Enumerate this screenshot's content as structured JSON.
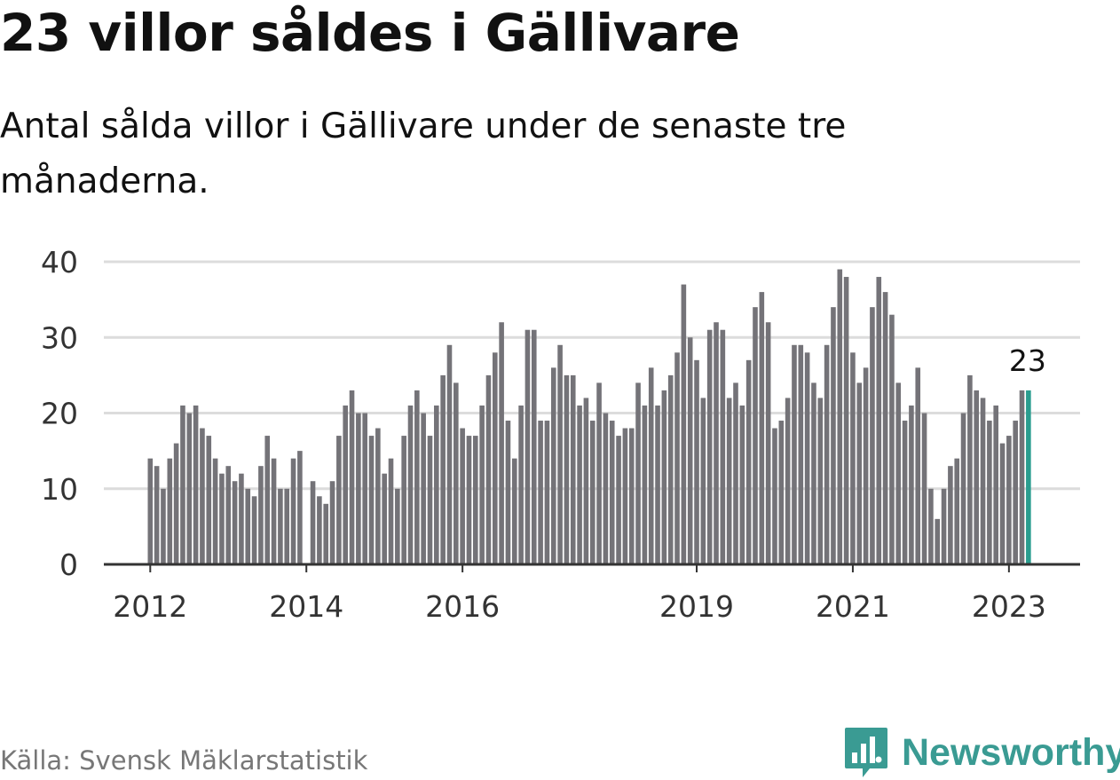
{
  "title": "23 villor såldes i Gällivare",
  "subtitle": "Antal sålda villor i Gällivare under de senaste tre månaderna.",
  "source": "Källa: Svensk Mäklarstatistik",
  "brand": "Newsworthy",
  "colors": {
    "bar": "#747378",
    "highlight": "#2a9d8f",
    "grid": "#dcdcdc",
    "axis": "#333333",
    "brand": "#3a9b93",
    "source_text": "#777777"
  },
  "chart_data": {
    "type": "bar",
    "title": "23 villor såldes i Gällivare",
    "subtitle": "Antal sålda villor i Gällivare under de senaste tre månaderna.",
    "xlabel": "",
    "ylabel": "",
    "ylim": [
      0,
      40
    ],
    "yticks": [
      0,
      10,
      20,
      30,
      40
    ],
    "xtick_labels": [
      "2012",
      "2014",
      "2016",
      "2019",
      "2021",
      "2023"
    ],
    "xtick_bar_index": [
      0,
      24,
      48,
      84,
      108,
      132
    ],
    "grid": true,
    "highlight_label": "23",
    "highlight_index": 135,
    "values": [
      14,
      13,
      10,
      14,
      16,
      21,
      20,
      21,
      18,
      17,
      14,
      12,
      13,
      11,
      12,
      10,
      9,
      13,
      17,
      14,
      10,
      10,
      14,
      15,
      0,
      11,
      9,
      8,
      11,
      17,
      21,
      23,
      20,
      20,
      17,
      18,
      12,
      14,
      10,
      17,
      21,
      23,
      20,
      17,
      21,
      25,
      29,
      24,
      18,
      17,
      17,
      21,
      25,
      28,
      32,
      19,
      14,
      21,
      31,
      31,
      19,
      19,
      26,
      29,
      25,
      25,
      21,
      22,
      19,
      24,
      20,
      19,
      17,
      18,
      18,
      24,
      21,
      26,
      21,
      23,
      25,
      28,
      37,
      30,
      27,
      22,
      31,
      32,
      31,
      22,
      24,
      21,
      27,
      34,
      36,
      32,
      18,
      19,
      22,
      29,
      29,
      28,
      24,
      22,
      29,
      34,
      39,
      38,
      28,
      24,
      26,
      34,
      38,
      36,
      33,
      24,
      19,
      21,
      26,
      20,
      10,
      6,
      10,
      13,
      14,
      20,
      25,
      23,
      22,
      19,
      21,
      16,
      17,
      19,
      23,
      23
    ]
  }
}
